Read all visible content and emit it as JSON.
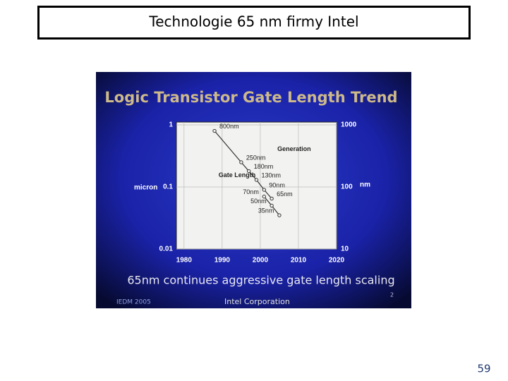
{
  "slide": {
    "title": "Technologie 65 nm firmy Intel",
    "page_number": "59",
    "photo": {
      "title": "Logic Transistor Gate Length Trend",
      "caption": "65nm continues aggressive gate length scaling",
      "footer_left": "IEDM 2005",
      "footer_center": "Intel Corporation",
      "slide_number": "2"
    }
  },
  "chart_data": {
    "type": "line",
    "y_log": true,
    "grid": true,
    "y_label": "micron",
    "y2_label": "nm",
    "xlim": [
      1978,
      2020
    ],
    "xticks": [
      1980,
      1990,
      2000,
      2010,
      2020
    ],
    "ylim": [
      0.01,
      1
    ],
    "yticks": [
      0.01,
      0.1,
      1
    ],
    "y2lim": [
      10,
      1000
    ],
    "y2ticks": [
      10,
      100,
      1000
    ],
    "series": [
      {
        "name": "Generation",
        "color": "#333333",
        "x": [
          1988,
          1995,
          1997,
          1999,
          2001,
          2003
        ],
        "values": [
          0.8,
          0.25,
          0.18,
          0.13,
          0.09,
          0.065
        ],
        "value_labels": [
          "800nm",
          "250nm",
          "180nm",
          "130nm",
          "90nm",
          "65nm"
        ]
      },
      {
        "name": "Gate Length",
        "color": "#333333",
        "x": [
          2001,
          2003,
          2005
        ],
        "values": [
          0.07,
          0.05,
          0.035
        ],
        "value_labels": [
          "70nm",
          "50nm",
          "35nm"
        ]
      }
    ]
  }
}
